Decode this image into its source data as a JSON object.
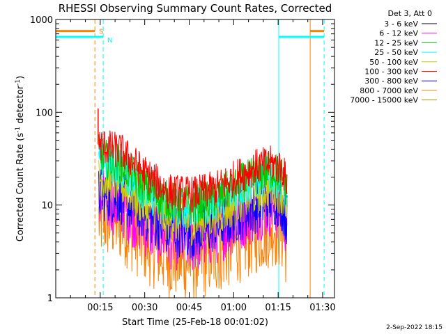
{
  "chart_data": {
    "type": "line",
    "title": "RHESSI Observing Summary Count Rates, Corrected",
    "xlabel": "Start Time (25-Feb-18 00:01:02)",
    "ylabel_main": "Corrected Count Rate (s",
    "ylabel_sup1": "-1",
    "ylabel_mid": " detector",
    "ylabel_sup2": "-1",
    "ylabel_end": ")",
    "yscale": "log",
    "ylim": [
      1,
      1000
    ],
    "xlim_minutes": [
      0,
      94
    ],
    "x_ticks": [
      {
        "min": 15,
        "label": "00:15"
      },
      {
        "min": 30,
        "label": "00:30"
      },
      {
        "min": 45,
        "label": "00:45"
      },
      {
        "min": 60,
        "label": "01:00"
      },
      {
        "min": 75,
        "label": "01:15"
      },
      {
        "min": 90,
        "label": "01:30"
      }
    ],
    "y_ticks": [
      {
        "value": 1,
        "label": "1"
      },
      {
        "value": 10,
        "label": "10"
      },
      {
        "value": 100,
        "label": "100"
      },
      {
        "value": 1000,
        "label": "1000"
      }
    ],
    "legend_placement": "top-right (outside plot)",
    "legend_title": "Det 3, Att 0",
    "series": [
      {
        "name": "3 - 6 keV",
        "color": "#000000",
        "key": [
          [
            14.5,
            40
          ],
          [
            17,
            35
          ],
          [
            22,
            30
          ],
          [
            30,
            18
          ],
          [
            38,
            12
          ],
          [
            46,
            11
          ],
          [
            54,
            13
          ],
          [
            62,
            18
          ],
          [
            68,
            23
          ],
          [
            73,
            25
          ],
          [
            76,
            22
          ],
          [
            78,
            18
          ]
        ],
        "noise": 0.25,
        "show": false
      },
      {
        "name": "6 - 12 keV",
        "color": "#ff00ff",
        "key": [
          [
            14.5,
            12
          ],
          [
            17,
            11
          ],
          [
            22,
            10
          ],
          [
            30,
            6
          ],
          [
            38,
            4.5
          ],
          [
            46,
            4
          ],
          [
            54,
            5
          ],
          [
            62,
            7
          ],
          [
            68,
            9
          ],
          [
            73,
            10
          ],
          [
            76,
            8.5
          ],
          [
            78,
            6
          ]
        ],
        "noise": 0.35,
        "show": true
      },
      {
        "name": "12 - 25 keV",
        "color": "#00cc00",
        "key": [
          [
            14.5,
            35
          ],
          [
            17,
            31
          ],
          [
            22,
            28
          ],
          [
            30,
            16
          ],
          [
            38,
            11
          ],
          [
            46,
            10
          ],
          [
            54,
            12
          ],
          [
            62,
            17
          ],
          [
            68,
            21
          ],
          [
            73,
            24
          ],
          [
            76,
            21
          ],
          [
            78,
            15
          ]
        ],
        "noise": 0.22,
        "show": true
      },
      {
        "name": "25 - 50 keV",
        "color": "#00ffff",
        "key": [
          [
            14.5,
            30
          ],
          [
            17,
            29
          ],
          [
            22,
            25
          ],
          [
            30,
            14
          ],
          [
            38,
            10
          ],
          [
            46,
            9
          ],
          [
            54,
            11
          ],
          [
            62,
            15
          ],
          [
            68,
            19
          ],
          [
            73,
            21
          ],
          [
            76,
            18
          ],
          [
            78,
            13
          ]
        ],
        "noise": 0.22,
        "show": true
      },
      {
        "name": "50 - 100 keV",
        "color": "#cccc00",
        "key": [
          [
            14.5,
            20
          ],
          [
            17,
            19
          ],
          [
            22,
            17
          ],
          [
            30,
            10
          ],
          [
            38,
            7
          ],
          [
            46,
            6.5
          ],
          [
            54,
            8
          ],
          [
            62,
            11
          ],
          [
            68,
            14
          ],
          [
            73,
            16
          ],
          [
            76,
            14
          ],
          [
            78,
            10
          ]
        ],
        "noise": 0.25,
        "show": true
      },
      {
        "name": "100 - 300 keV",
        "color": "#ff0000",
        "key": [
          [
            14.5,
            45
          ],
          [
            17,
            42
          ],
          [
            22,
            38
          ],
          [
            30,
            22
          ],
          [
            38,
            14
          ],
          [
            46,
            13
          ],
          [
            54,
            15
          ],
          [
            62,
            21
          ],
          [
            68,
            26
          ],
          [
            73,
            28
          ],
          [
            76,
            25
          ],
          [
            78,
            18
          ]
        ],
        "noise": 0.2,
        "show": true
      },
      {
        "name": "300 - 800 keV",
        "color": "#0000ff",
        "key": [
          [
            14.5,
            13
          ],
          [
            17,
            13
          ],
          [
            22,
            12
          ],
          [
            30,
            8
          ],
          [
            38,
            5.5
          ],
          [
            46,
            5
          ],
          [
            54,
            6
          ],
          [
            62,
            8
          ],
          [
            68,
            10
          ],
          [
            73,
            12
          ],
          [
            76,
            11
          ],
          [
            78,
            7
          ]
        ],
        "noise": 0.3,
        "show": true
      },
      {
        "name": "800 - 7000 keV",
        "color": "#ff8000",
        "key": [
          [
            14.5,
            7
          ],
          [
            17,
            7
          ],
          [
            22,
            6.5
          ],
          [
            30,
            4
          ],
          [
            38,
            2.8
          ],
          [
            46,
            2.5
          ],
          [
            54,
            3
          ],
          [
            62,
            4
          ],
          [
            68,
            5
          ],
          [
            73,
            6
          ],
          [
            76,
            5.5
          ],
          [
            78,
            3.5
          ]
        ],
        "noise": 0.45,
        "show": true
      },
      {
        "name": "7000 - 15000 keV",
        "color": "#cc8800",
        "key": [
          [
            14.5,
            5
          ],
          [
            17,
            5
          ],
          [
            22,
            4.5
          ],
          [
            30,
            3
          ],
          [
            38,
            2
          ],
          [
            46,
            1.8
          ],
          [
            54,
            2.1
          ],
          [
            62,
            2.8
          ],
          [
            68,
            3.4
          ],
          [
            73,
            4
          ],
          [
            76,
            3.7
          ],
          [
            78,
            2.5
          ]
        ],
        "noise": 0.5,
        "show": false
      }
    ],
    "spike": {
      "min": 14.3,
      "value": 110,
      "color": "#ff0000"
    },
    "markers": [
      {
        "label": "S",
        "color": "#ff8000",
        "level": 750,
        "from": 0,
        "to": 13.2,
        "dashed_at": 13.2
      },
      {
        "label": "N",
        "color": "#00ffff",
        "level": 650,
        "from": 0,
        "to": 16.0,
        "dashed_at": 16.0
      }
    ],
    "post_markers": [
      {
        "color": "#00ffff",
        "level": 650,
        "from": 75.2,
        "to": 90.5
      },
      {
        "color": "#ff8000",
        "level": 750,
        "from": 85.8,
        "to": 90.5
      }
    ],
    "vertical_lines": [
      {
        "min": 0,
        "color": "#00ffff",
        "style": "solid"
      },
      {
        "min": 13.2,
        "color": "#ff8000",
        "style": "dashed"
      },
      {
        "min": 16.0,
        "color": "#00ffff",
        "style": "dashed"
      },
      {
        "min": 75.2,
        "color": "#00ffff",
        "style": "solid"
      },
      {
        "min": 85.8,
        "color": "#ff8000",
        "style": "solid"
      },
      {
        "min": 90.5,
        "color": "#00ffff",
        "style": "dashed"
      }
    ]
  },
  "footer": {
    "timestamp": "2-Sep-2022 18:15"
  }
}
